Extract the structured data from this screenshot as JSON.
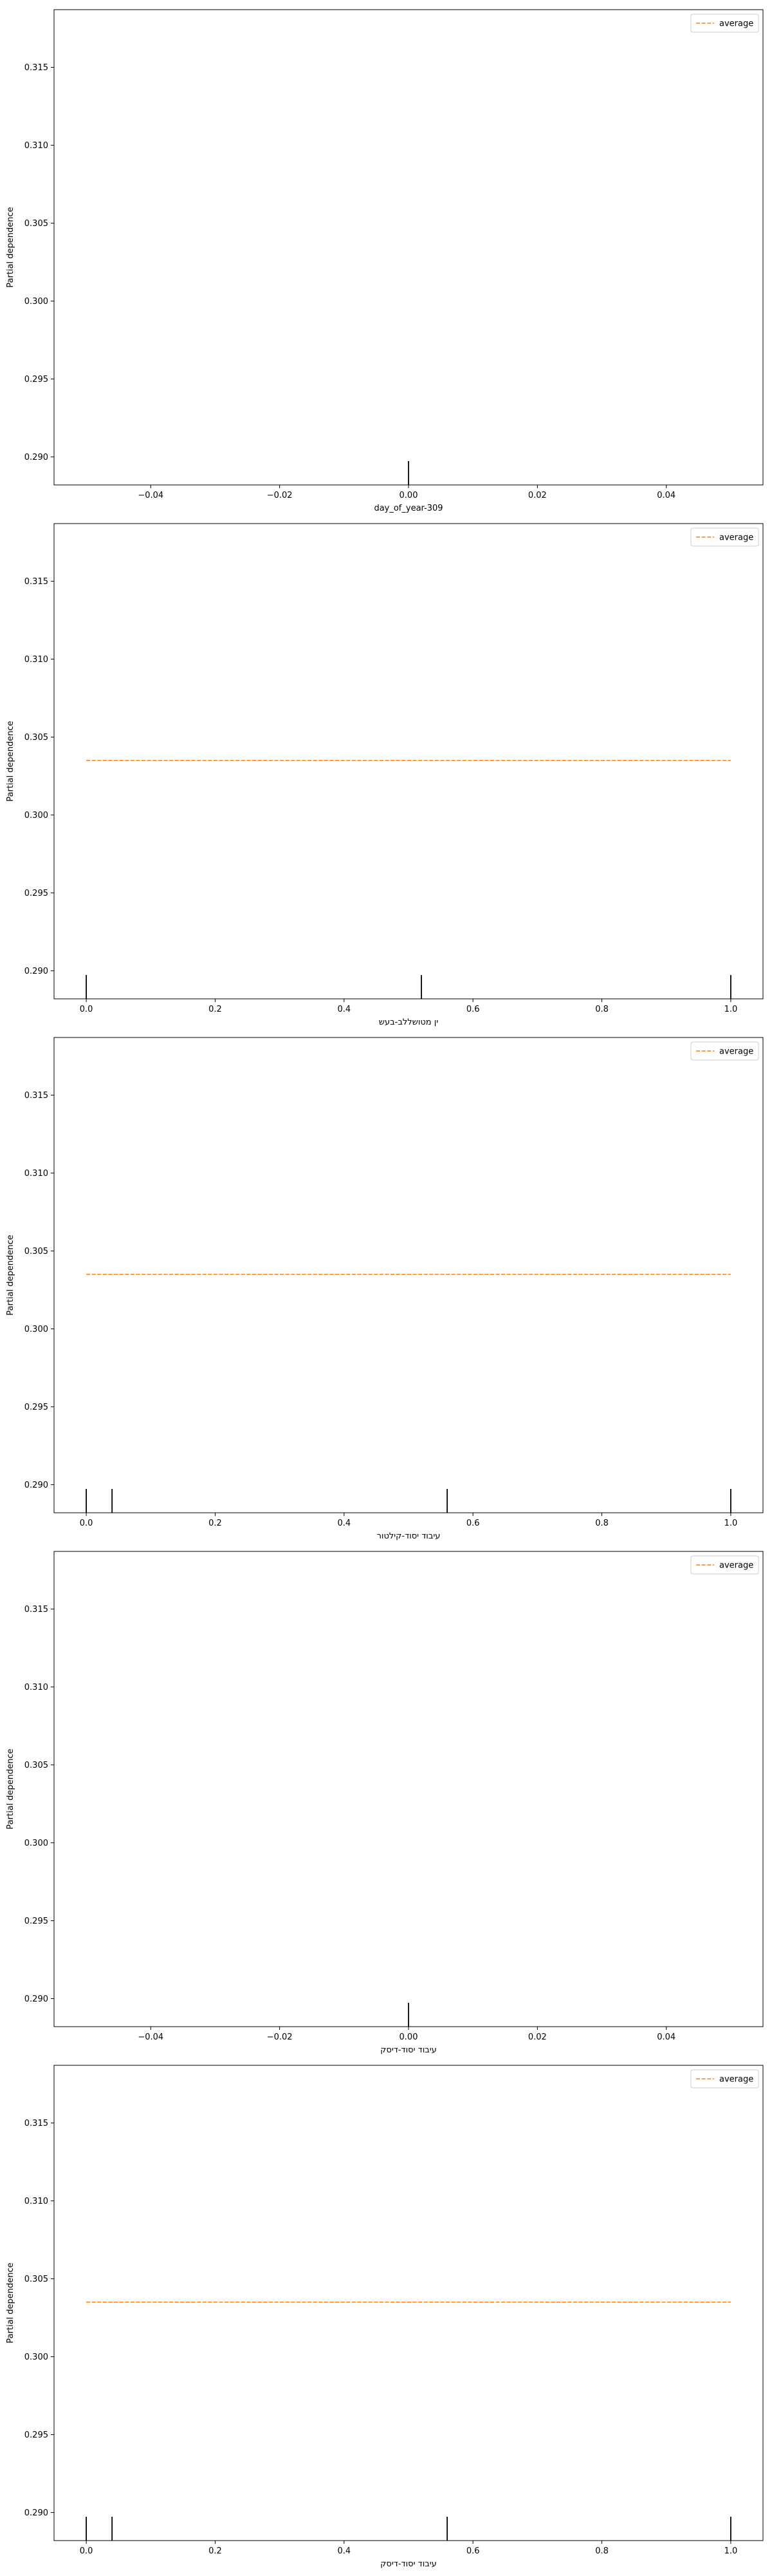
{
  "chart_data": [
    {
      "type": "line",
      "xlabel": "day_of_year-309",
      "ylabel": "Partial dependence",
      "xlim": [
        -0.055,
        0.055
      ],
      "ylim": [
        0.2882,
        0.3187
      ],
      "xticks": [
        -0.04,
        -0.02,
        0.0,
        0.02,
        0.04
      ],
      "xtick_labels": [
        "−0.04",
        "−0.02",
        "0.00",
        "0.02",
        "0.04"
      ],
      "yticks": [
        0.29,
        0.295,
        0.3,
        0.305,
        0.31,
        0.315
      ],
      "ytick_labels": [
        "0.290",
        "0.295",
        "0.300",
        "0.305",
        "0.310",
        "0.315"
      ],
      "series": [
        {
          "name": "average",
          "style": "dashed",
          "color": "#ff7f0e",
          "x": [],
          "y": []
        }
      ],
      "rug": [
        0.0
      ],
      "legend": "top-right",
      "grid": false
    },
    {
      "type": "line",
      "xlabel": "ין מטושללב-בעש",
      "ylabel": "Partial dependence",
      "xlim": [
        -0.05,
        1.05
      ],
      "ylim": [
        0.2882,
        0.3187
      ],
      "xticks": [
        0.0,
        0.2,
        0.4,
        0.6,
        0.8,
        1.0
      ],
      "xtick_labels": [
        "0.0",
        "0.2",
        "0.4",
        "0.6",
        "0.8",
        "1.0"
      ],
      "yticks": [
        0.29,
        0.295,
        0.3,
        0.305,
        0.31,
        0.315
      ],
      "ytick_labels": [
        "0.290",
        "0.295",
        "0.300",
        "0.305",
        "0.310",
        "0.315"
      ],
      "series": [
        {
          "name": "average",
          "style": "dashed",
          "color": "#ff7f0e",
          "x": [
            0.0,
            1.0
          ],
          "y": [
            0.3035,
            0.3035
          ]
        }
      ],
      "rug": [
        0.0,
        0.52,
        1.0
      ],
      "legend": "top-right",
      "grid": false
    },
    {
      "type": "line",
      "xlabel": "עיבוד יסוד-קילטור",
      "ylabel": "Partial dependence",
      "xlim": [
        -0.05,
        1.05
      ],
      "ylim": [
        0.2882,
        0.3187
      ],
      "xticks": [
        0.0,
        0.2,
        0.4,
        0.6,
        0.8,
        1.0
      ],
      "xtick_labels": [
        "0.0",
        "0.2",
        "0.4",
        "0.6",
        "0.8",
        "1.0"
      ],
      "yticks": [
        0.29,
        0.295,
        0.3,
        0.305,
        0.31,
        0.315
      ],
      "ytick_labels": [
        "0.290",
        "0.295",
        "0.300",
        "0.305",
        "0.310",
        "0.315"
      ],
      "series": [
        {
          "name": "average",
          "style": "dashed",
          "color": "#ff7f0e",
          "x": [
            0.0,
            1.0
          ],
          "y": [
            0.3035,
            0.3035
          ]
        }
      ],
      "rug": [
        0.0,
        0.04,
        0.56,
        1.0
      ],
      "legend": "top-right",
      "grid": false
    },
    {
      "type": "line",
      "xlabel": "עיבוד יסוד-דיסק",
      "ylabel": "Partial dependence",
      "xlim": [
        -0.055,
        0.055
      ],
      "ylim": [
        0.2882,
        0.3187
      ],
      "xticks": [
        -0.04,
        -0.02,
        0.0,
        0.02,
        0.04
      ],
      "xtick_labels": [
        "−0.04",
        "−0.02",
        "0.00",
        "0.02",
        "0.04"
      ],
      "yticks": [
        0.29,
        0.295,
        0.3,
        0.305,
        0.31,
        0.315
      ],
      "ytick_labels": [
        "0.290",
        "0.295",
        "0.300",
        "0.305",
        "0.310",
        "0.315"
      ],
      "series": [
        {
          "name": "average",
          "style": "dashed",
          "color": "#ff7f0e",
          "x": [],
          "y": []
        }
      ],
      "rug": [
        0.0
      ],
      "legend": "top-right",
      "grid": false
    },
    {
      "type": "line",
      "xlabel": "עיבוד יסוד-דיסק",
      "ylabel": "Partial dependence",
      "xlim": [
        -0.05,
        1.05
      ],
      "ylim": [
        0.2882,
        0.3187
      ],
      "xticks": [
        0.0,
        0.2,
        0.4,
        0.6,
        0.8,
        1.0
      ],
      "xtick_labels": [
        "0.0",
        "0.2",
        "0.4",
        "0.6",
        "0.8",
        "1.0"
      ],
      "yticks": [
        0.29,
        0.295,
        0.3,
        0.305,
        0.31,
        0.315
      ],
      "ytick_labels": [
        "0.290",
        "0.295",
        "0.300",
        "0.305",
        "0.310",
        "0.315"
      ],
      "series": [
        {
          "name": "average",
          "style": "dashed",
          "color": "#ff7f0e",
          "x": [
            0.0,
            1.0
          ],
          "y": [
            0.3035,
            0.3035
          ]
        }
      ],
      "rug": [
        0.0,
        0.04,
        0.56,
        1.0
      ],
      "legend": "top-right",
      "grid": false
    }
  ]
}
